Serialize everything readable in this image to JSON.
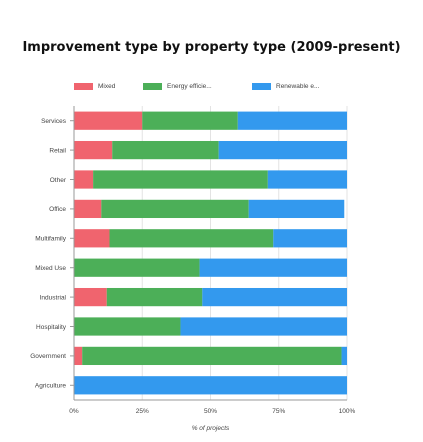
{
  "chart_data": {
    "type": "bar",
    "orientation": "horizontal",
    "stacked": true,
    "title": "Improvement type by property type (2009-present)",
    "xlabel": "% of projects",
    "ylabel": "",
    "xlim": [
      0,
      100
    ],
    "x_ticks": [
      "0%",
      "25%",
      "50%",
      "75%",
      "100%"
    ],
    "grid": "vertical",
    "legend_position": "top",
    "categories": [
      "Services",
      "Retail",
      "Other",
      "Office",
      "Multifamily",
      "Mixed Use",
      "Industrial",
      "Hospitality",
      "Government",
      "Agriculture"
    ],
    "series": [
      {
        "name": "Mixed",
        "legend_label": "Mixed",
        "color": "#f0646e",
        "values": [
          25,
          14,
          7,
          10,
          13,
          0,
          12,
          0,
          3,
          0
        ]
      },
      {
        "name": "Energy efficiency",
        "legend_label": "Energy efficie...",
        "color": "#4caf58",
        "values": [
          35,
          39,
          64,
          54,
          60,
          46,
          35,
          39,
          95,
          0
        ]
      },
      {
        "name": "Renewable energy",
        "legend_label": "Renewable e...",
        "color": "#3399ee",
        "values": [
          40,
          47,
          29,
          35,
          27,
          54,
          53,
          61,
          2,
          100
        ]
      }
    ]
  }
}
